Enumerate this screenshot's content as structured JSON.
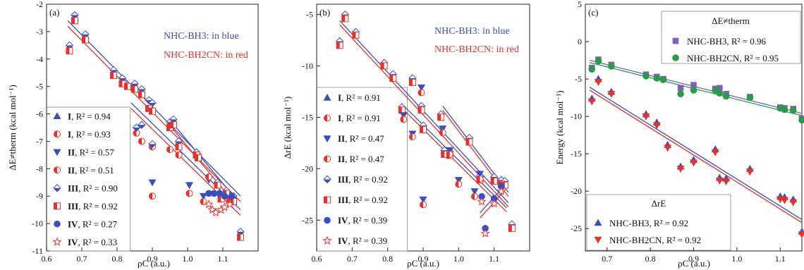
{
  "chart_data": [
    {
      "panel": "(a)",
      "type": "scatter",
      "ylabel": "ΔE≠therm (kcal mol⁻¹)",
      "xlabel": "ρC (a.u.)",
      "xlim": [
        0.6,
        1.2
      ],
      "ylim": [
        -11,
        -2
      ],
      "xticks": [
        0.6,
        0.7,
        0.8,
        0.9,
        1.0,
        1.1
      ],
      "xtick_labels": [
        "0.6",
        "0.7",
        "0.8",
        "0.9",
        "1.0",
        "1.1"
      ],
      "yticks": [
        -11,
        -10,
        -9,
        -8,
        -7,
        -6,
        -5,
        -4,
        -3,
        -2
      ],
      "ytick_labels": [
        "-11",
        "-10",
        "-9",
        "-8",
        "-7",
        "-6",
        "-5",
        "-4",
        "-3",
        "-2"
      ],
      "note_lines": [
        "NHC-BH3: in blue",
        "NHC-BH2CN: in red"
      ],
      "legend": [
        {
          "set": "I",
          "r2": "0.94",
          "color": "#3a4fbf",
          "marker": "tri-up"
        },
        {
          "set": "I",
          "r2": "0.93",
          "color": "#e8312a",
          "marker": "half-circle"
        },
        {
          "set": "II",
          "r2": "0.57",
          "color": "#3a4fbf",
          "marker": "tri-down"
        },
        {
          "set": "II",
          "r2": "0.51",
          "color": "#e8312a",
          "marker": "half-circle"
        },
        {
          "set": "III",
          "r2": "0.90",
          "color": "#3a4fbf",
          "marker": "diamond"
        },
        {
          "set": "III",
          "r2": "0.92",
          "color": "#e8312a",
          "marker": "half-square"
        },
        {
          "set": "IV",
          "r2": "0.27",
          "color": "#3a4fbf",
          "marker": "circle"
        },
        {
          "set": "IV",
          "r2": "0.33",
          "color": "#e8312a",
          "marker": "star"
        }
      ],
      "series": [
        {
          "color": "#3a4fbf",
          "marker": "diamond",
          "x": [
            0.665,
            0.68,
            0.71,
            0.79,
            0.815,
            0.83,
            0.85,
            0.87,
            0.89,
            0.9,
            0.95,
            0.96,
            0.975,
            1.025,
            1.03,
            1.085,
            1.095,
            1.11,
            1.12,
            1.13,
            1.15
          ],
          "y": [
            -3.5,
            -2.4,
            -3.1,
            -4.4,
            -4.7,
            -4.95,
            -4.9,
            -5.1,
            -5.5,
            -5.6,
            -6.3,
            -6.2,
            -7.0,
            -7.4,
            -7.5,
            -8.5,
            -9.0,
            -8.8,
            -9.0,
            -9.0,
            -10.3
          ]
        },
        {
          "color": "#e8312a",
          "marker": "half-square",
          "x": [
            0.665,
            0.68,
            0.71,
            0.79,
            0.815,
            0.83,
            0.85,
            0.87,
            0.89,
            0.9,
            0.95,
            0.96,
            0.975,
            1.025,
            1.03,
            1.085,
            1.095,
            1.11,
            1.12,
            1.13,
            1.15
          ],
          "y": [
            -3.7,
            -2.6,
            -3.3,
            -4.6,
            -4.9,
            -5.0,
            -5.1,
            -5.3,
            -5.8,
            -5.9,
            -6.5,
            -6.4,
            -7.2,
            -7.5,
            -7.6,
            -8.6,
            -9.1,
            -8.9,
            -9.1,
            -9.2,
            -10.5
          ]
        },
        {
          "color": "#3a4fbf",
          "marker": "tri-down",
          "x": [
            0.9,
            1.005,
            1.045,
            1.06
          ],
          "y": [
            -8.5,
            -8.6,
            -9.0,
            -8.4
          ]
        },
        {
          "color": "#e8312a",
          "marker": "half-circle",
          "x": [
            0.855,
            0.87,
            0.9,
            0.95,
            0.975,
            1.005,
            1.045,
            1.06
          ],
          "y": [
            -6.7,
            -7.0,
            -7.2,
            -7.3,
            -7.5,
            -8.9,
            -9.2,
            -8.3
          ]
        },
        {
          "color": "#3a4fbf",
          "marker": "diamond",
          "x": [
            0.855,
            0.87,
            0.9
          ],
          "y": [
            -6.5,
            -6.4,
            -7.1
          ]
        },
        {
          "color": "#e8312a",
          "marker": "half-circle",
          "x": [
            0.9
          ],
          "y": [
            -9.0
          ]
        },
        {
          "color": "#3a4fbf",
          "marker": "circle",
          "x": [
            1.06,
            1.075,
            1.09,
            1.105,
            1.125
          ],
          "y": [
            -8.9,
            -8.9,
            -8.9,
            -9.0,
            -9.0
          ]
        },
        {
          "color": "#e8312a",
          "marker": "star",
          "x": [
            1.06,
            1.07,
            1.08,
            1.095,
            1.105,
            1.12
          ],
          "y": [
            -9.3,
            -9.5,
            -9.6,
            -9.5,
            -9.4,
            -9.3
          ]
        }
      ],
      "fit_lines": [
        {
          "color": "#3a4fbf",
          "x": [
            0.66,
            1.15
          ],
          "y": [
            -2.6,
            -9.0
          ]
        },
        {
          "color": "#e8312a",
          "x": [
            0.66,
            1.15
          ],
          "y": [
            -2.8,
            -9.2
          ]
        },
        {
          "color": "#3a4fbf",
          "x": [
            0.84,
            1.15
          ],
          "y": [
            -5.6,
            -9.5
          ]
        },
        {
          "color": "#e8312a",
          "x": [
            0.84,
            1.15
          ],
          "y": [
            -5.8,
            -9.7
          ]
        },
        {
          "color": "#3a4fbf",
          "x": [
            0.955,
            1.13
          ],
          "y": [
            -6.3,
            -9.0
          ]
        },
        {
          "color": "#e8312a",
          "x": [
            0.955,
            1.13
          ],
          "y": [
            -6.5,
            -9.2
          ]
        }
      ]
    },
    {
      "panel": "(b)",
      "type": "scatter",
      "ylabel": "ΔrE (kcal mol⁻¹)",
      "xlabel": "ρC (a.u.)",
      "xlim": [
        0.6,
        1.2
      ],
      "ylim": [
        -28,
        -4
      ],
      "xticks": [
        0.6,
        0.7,
        0.8,
        0.9,
        1.0,
        1.1
      ],
      "xtick_labels": [
        "0.6",
        "0.7",
        "0.8",
        "0.9",
        "1.0",
        "1.1"
      ],
      "yticks": [
        -25,
        -20,
        -15,
        -10,
        -5
      ],
      "ytick_labels": [
        "-25",
        "-20",
        "-15",
        "-10",
        "-5"
      ],
      "note_lines": [
        "NHC-BH3: in blue",
        "NHC-BH2CN: in red"
      ],
      "legend": [
        {
          "set": "I",
          "r2": "0.91",
          "color": "#3a4fbf",
          "marker": "tri-up"
        },
        {
          "set": "I",
          "r2": "0.91",
          "color": "#e8312a",
          "marker": "half-circle"
        },
        {
          "set": "II",
          "r2": "0.47",
          "color": "#3a4fbf",
          "marker": "tri-down"
        },
        {
          "set": "II",
          "r2": "0.47",
          "color": "#e8312a",
          "marker": "half-circle"
        },
        {
          "set": "III",
          "r2": "0.92",
          "color": "#3a4fbf",
          "marker": "diamond"
        },
        {
          "set": "III",
          "r2": "0.92",
          "color": "#e8312a",
          "marker": "half-square"
        },
        {
          "set": "IV",
          "r2": "0.39",
          "color": "#3a4fbf",
          "marker": "circle"
        },
        {
          "set": "IV",
          "r2": "0.39",
          "color": "#e8312a",
          "marker": "star"
        }
      ],
      "series": [
        {
          "color": "#3a4fbf",
          "marker": "diamond",
          "x": [
            0.665,
            0.68,
            0.71,
            0.79,
            0.815,
            0.84,
            0.87,
            0.895,
            0.9,
            0.95,
            0.96,
            0.975,
            1.03,
            1.06,
            1.1,
            1.12,
            1.13,
            1.15
          ],
          "y": [
            -7.6,
            -5.0,
            -6.7,
            -9.7,
            -10.8,
            -14.0,
            -11.2,
            -13.9,
            -15.8,
            -14.7,
            -18.2,
            -18.3,
            -17.0,
            -20.7,
            -20.8,
            -21.1,
            -21.2,
            -25.4
          ]
        },
        {
          "color": "#e8312a",
          "marker": "half-square",
          "x": [
            0.665,
            0.68,
            0.71,
            0.79,
            0.815,
            0.84,
            0.87,
            0.895,
            0.9,
            0.95,
            0.96,
            0.975,
            1.03,
            1.06,
            1.1,
            1.12,
            1.13,
            1.15
          ],
          "y": [
            -8.0,
            -5.4,
            -7.0,
            -10.0,
            -11.2,
            -14.3,
            -11.6,
            -14.3,
            -16.2,
            -15.0,
            -18.6,
            -18.7,
            -17.4,
            -21.1,
            -21.2,
            -21.5,
            -21.6,
            -25.8
          ]
        },
        {
          "color": "#3a4fbf",
          "marker": "tri-down",
          "x": [
            0.845,
            0.87,
            0.895,
            0.9,
            0.955,
            0.975,
            1.0,
            1.045,
            1.06
          ],
          "y": [
            -14.8,
            -16.6,
            -12.1,
            -23.0,
            -16.1,
            -18.2,
            -21.1,
            -22.2,
            -20.5
          ]
        },
        {
          "color": "#e8312a",
          "marker": "half-circle",
          "x": [
            0.845,
            0.87,
            0.895,
            0.9,
            0.955,
            0.975,
            1.0,
            1.045,
            1.06
          ],
          "y": [
            -15.2,
            -16.9,
            -12.6,
            -23.5,
            -16.5,
            -18.6,
            -21.5,
            -22.7,
            -21.0
          ]
        },
        {
          "color": "#3a4fbf",
          "marker": "circle",
          "x": [
            1.065,
            1.075,
            1.1,
            1.12
          ],
          "y": [
            -22.7,
            -25.8,
            -22.9,
            -21.7
          ]
        },
        {
          "color": "#e8312a",
          "marker": "star",
          "x": [
            1.065,
            1.075,
            1.1,
            1.12
          ],
          "y": [
            -23.2,
            -26.3,
            -23.4,
            -22.2
          ]
        }
      ],
      "fit_lines": [
        {
          "color": "#3a4fbf",
          "x": [
            0.665,
            1.14
          ],
          "y": [
            -5.6,
            -23.3
          ]
        },
        {
          "color": "#e8312a",
          "x": [
            0.665,
            1.14
          ],
          "y": [
            -6.0,
            -23.7
          ]
        },
        {
          "color": "#3a4fbf",
          "x": [
            0.84,
            1.135
          ],
          "y": [
            -13.7,
            -23.8
          ]
        },
        {
          "color": "#e8312a",
          "x": [
            0.84,
            1.135
          ],
          "y": [
            -14.1,
            -24.2
          ]
        },
        {
          "color": "#3a4fbf",
          "x": [
            0.955,
            1.14
          ],
          "y": [
            -13.9,
            -22.3
          ]
        },
        {
          "color": "#e8312a",
          "x": [
            0.955,
            1.14
          ],
          "y": [
            -14.3,
            -22.7
          ]
        },
        {
          "color": "#3a4fbf",
          "x": [
            1.06,
            1.13
          ],
          "y": [
            -24.3,
            -21.6
          ]
        },
        {
          "color": "#e8312a",
          "x": [
            1.06,
            1.13
          ],
          "y": [
            -24.8,
            -22.1
          ]
        }
      ]
    },
    {
      "panel": "(c)",
      "type": "scatter",
      "ylabel": "Energy (kcal mol⁻¹)",
      "xlabel": "ρC (a.u.)",
      "xlim": [
        0.65,
        1.15
      ],
      "ylim": [
        -28,
        5
      ],
      "xticks": [
        0.7,
        0.8,
        0.9,
        1.0,
        1.1
      ],
      "xtick_labels": [
        "0.7",
        "0.8",
        "0.9",
        "1.0",
        "1.1"
      ],
      "yticks": [
        -25,
        -20,
        -15,
        -10,
        -5,
        0,
        5
      ],
      "ytick_labels": [
        "-25",
        "-20",
        "-15",
        "-10",
        "-5",
        "0",
        "5"
      ],
      "legend_top": {
        "title": "ΔE≠therm",
        "entries": [
          {
            "label": "NHC-BH3, R² = 0.96",
            "color": "#8060b8",
            "marker": "square"
          },
          {
            "label": "NHC-BH2CN, R² = 0.95",
            "color": "#2a9a4a",
            "marker": "circle"
          }
        ]
      },
      "legend_bottom": {
        "title": "ΔrE",
        "entries": [
          {
            "label": "NHC-BH3, R² = 0.92",
            "color": "#3a4fbf",
            "marker": "tri-up"
          },
          {
            "label": "NHC-BH2CN, R² = 0.92",
            "color": "#e8312a",
            "marker": "tri-down"
          }
        ]
      },
      "series": [
        {
          "name": "ΔE≠therm NHC-BH3",
          "color": "#8060b8",
          "marker": "square",
          "x": [
            0.665,
            0.68,
            0.71,
            0.79,
            0.815,
            0.83,
            0.87,
            0.9,
            0.95,
            0.96,
            0.975,
            1.03,
            1.1,
            1.11,
            1.13,
            1.15
          ],
          "y": [
            -3.5,
            -2.4,
            -3.1,
            -4.4,
            -4.7,
            -5.0,
            -6.2,
            -5.8,
            -6.3,
            -6.2,
            -7.0,
            -7.4,
            -8.8,
            -8.9,
            -9.0,
            -10.3
          ]
        },
        {
          "name": "ΔE≠therm NHC-BH2CN",
          "color": "#2a9a4a",
          "marker": "circle",
          "x": [
            0.665,
            0.68,
            0.71,
            0.79,
            0.815,
            0.83,
            0.87,
            0.9,
            0.95,
            0.96,
            0.975,
            1.03,
            1.1,
            1.11,
            1.13,
            1.15
          ],
          "y": [
            -3.7,
            -2.6,
            -3.3,
            -4.6,
            -4.9,
            -5.1,
            -7.0,
            -6.5,
            -6.5,
            -6.9,
            -7.3,
            -7.5,
            -8.9,
            -9.1,
            -9.2,
            -10.5
          ]
        },
        {
          "name": "ΔrE NHC-BH3",
          "color": "#3a4fbf",
          "marker": "tri-up",
          "x": [
            0.665,
            0.68,
            0.71,
            0.79,
            0.815,
            0.84,
            0.87,
            0.9,
            0.95,
            0.96,
            0.975,
            1.03,
            1.1,
            1.11,
            1.13,
            1.15
          ],
          "y": [
            -7.6,
            -5.0,
            -6.7,
            -9.7,
            -10.8,
            -13.8,
            -16.7,
            -15.8,
            -14.4,
            -18.2,
            -18.3,
            -17.0,
            -20.7,
            -20.8,
            -21.1,
            -25.4
          ]
        },
        {
          "name": "ΔrE NHC-BH2CN",
          "color": "#e8312a",
          "marker": "tri-down",
          "x": [
            0.665,
            0.68,
            0.71,
            0.79,
            0.815,
            0.84,
            0.87,
            0.9,
            0.95,
            0.96,
            0.975,
            1.03,
            1.1,
            1.11,
            1.13,
            1.15
          ],
          "y": [
            -8.0,
            -5.4,
            -7.0,
            -10.0,
            -11.2,
            -14.2,
            -17.0,
            -16.2,
            -14.8,
            -18.6,
            -18.7,
            -17.4,
            -21.1,
            -21.2,
            -21.5,
            -25.8
          ]
        }
      ],
      "fit_lines": [
        {
          "color": "#8060b8",
          "x": [
            0.66,
            1.15
          ],
          "y": [
            -2.5,
            -9.6
          ]
        },
        {
          "color": "#2a9a4a",
          "x": [
            0.66,
            1.15
          ],
          "y": [
            -2.8,
            -9.9
          ]
        },
        {
          "color": "#3a4fbf",
          "x": [
            0.66,
            1.15
          ],
          "y": [
            -6.1,
            -23.8
          ]
        },
        {
          "color": "#e8312a",
          "x": [
            0.66,
            1.15
          ],
          "y": [
            -6.5,
            -24.2
          ]
        }
      ]
    }
  ]
}
